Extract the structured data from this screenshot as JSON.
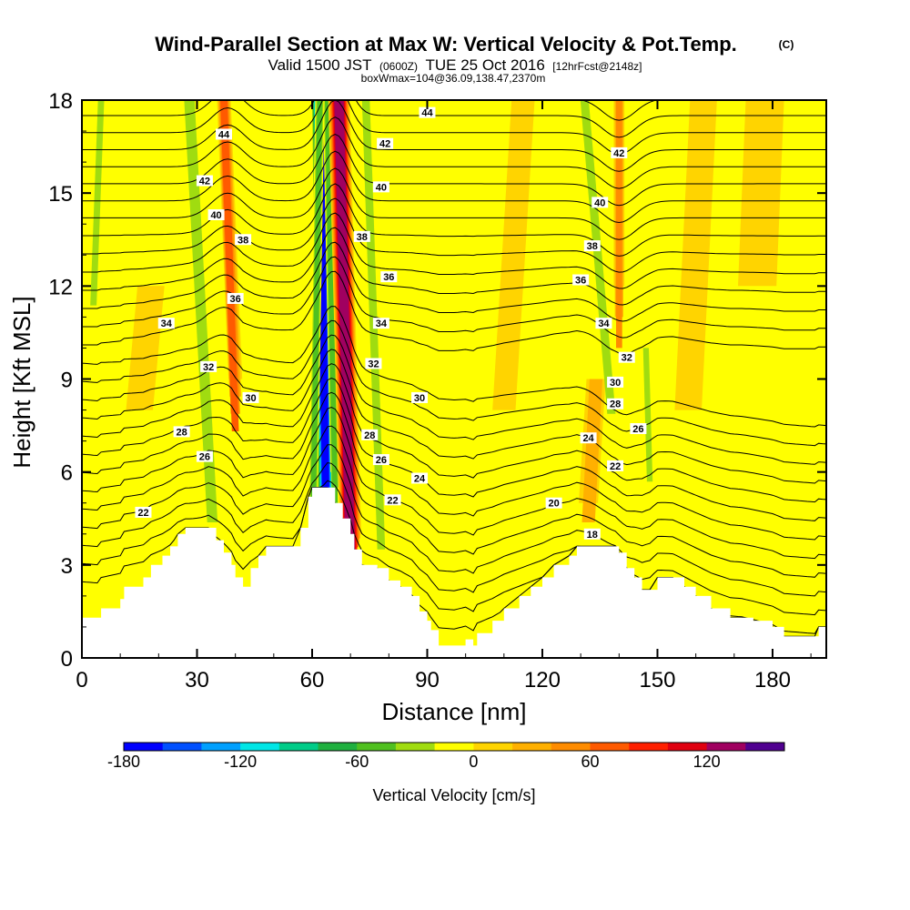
{
  "chart_data": {
    "type": "heatmap",
    "title": "Wind-Parallel Section at Max W: Vertical Velocity & Pot.Temp.",
    "title_mark": "(C)",
    "subtitle": {
      "valid": "Valid 1500 JST",
      "utc": "(0600Z)",
      "date": "TUE 25 Oct 2016",
      "forecast": "[12hrFcst@2148z]"
    },
    "subtitle2": "boxWmax=104@36.09,138.47,2370m",
    "xlabel": "Distance [nm]",
    "ylabel": "Height [Kft MSL]",
    "xlim": [
      0,
      194
    ],
    "ylim": [
      0,
      18
    ],
    "xticks": [
      0,
      30,
      60,
      90,
      120,
      150,
      180
    ],
    "yticks": [
      0,
      3,
      6,
      9,
      12,
      15,
      18
    ],
    "grid": false,
    "colorbar": {
      "label": "Vertical Velocity [cm/s]",
      "min": -180,
      "max": 160,
      "step": 20,
      "tick_values": [
        -180,
        -120,
        -60,
        0,
        60,
        120
      ],
      "colors": [
        "#0000ff",
        "#0050ff",
        "#00a0ff",
        "#00e6e6",
        "#00cc88",
        "#20b040",
        "#50c020",
        "#a0dc10",
        "#ffff00",
        "#ffd400",
        "#ffb000",
        "#ff8c00",
        "#ff5a00",
        "#ff2000",
        "#e00010",
        "#a00060",
        "#500090"
      ]
    },
    "terrain_height_kft": [
      [
        0,
        1.3
      ],
      [
        4,
        1.3
      ],
      [
        5,
        1.6
      ],
      [
        10,
        1.9
      ],
      [
        11,
        2.3
      ],
      [
        16,
        2.6
      ],
      [
        18,
        3.0
      ],
      [
        21,
        3.3
      ],
      [
        23,
        3.6
      ],
      [
        25,
        4.0
      ],
      [
        27,
        4.2
      ],
      [
        33,
        4.2
      ],
      [
        35,
        3.8
      ],
      [
        37,
        3.4
      ],
      [
        39,
        3.0
      ],
      [
        40,
        2.6
      ],
      [
        42,
        2.3
      ],
      [
        44,
        2.9
      ],
      [
        46,
        3.3
      ],
      [
        48,
        3.6
      ],
      [
        55,
        3.6
      ],
      [
        57,
        4.2
      ],
      [
        59,
        5.2
      ],
      [
        60,
        5.5
      ],
      [
        64,
        5.5
      ],
      [
        66,
        5.0
      ],
      [
        68,
        4.5
      ],
      [
        70,
        4.0
      ],
      [
        71,
        3.5
      ],
      [
        73,
        3.0
      ],
      [
        77,
        2.9
      ],
      [
        80,
        2.5
      ],
      [
        83,
        2.3
      ],
      [
        86,
        2.0
      ],
      [
        88,
        1.5
      ],
      [
        90,
        1.2
      ],
      [
        91,
        0.9
      ],
      [
        93,
        0.4
      ],
      [
        97,
        0.4
      ],
      [
        100,
        0.6
      ],
      [
        102,
        0.4
      ],
      [
        103,
        0.8
      ],
      [
        107,
        1.2
      ],
      [
        110,
        1.6
      ],
      [
        114,
        2.0
      ],
      [
        117,
        2.3
      ],
      [
        120,
        2.6
      ],
      [
        123,
        3.0
      ],
      [
        127,
        3.3
      ],
      [
        129,
        3.6
      ],
      [
        139,
        3.6
      ],
      [
        140,
        3.4
      ],
      [
        142,
        2.9
      ],
      [
        144,
        2.6
      ],
      [
        146,
        2.2
      ],
      [
        148,
        2.2
      ],
      [
        150,
        2.6
      ],
      [
        154,
        2.6
      ],
      [
        157,
        2.3
      ],
      [
        160,
        2.0
      ],
      [
        164,
        1.6
      ],
      [
        169,
        1.3
      ],
      [
        172,
        1.3
      ],
      [
        175,
        1.2
      ],
      [
        180,
        1.0
      ],
      [
        183,
        0.7
      ],
      [
        191,
        0.7
      ],
      [
        192,
        1.0
      ],
      [
        194,
        1.0
      ]
    ],
    "w_features": [
      {
        "x": 64,
        "y": 2.0,
        "x_top": 62,
        "half_width": 2.2,
        "value": -180,
        "top_kft": 18
      },
      {
        "x": 66,
        "y": 6.0,
        "x_top": 64,
        "half_width": 1.2,
        "value": -60,
        "top_kft": 18
      },
      {
        "x": 70,
        "y": 4.0,
        "x_top": 67,
        "half_width": 2.8,
        "value": 140,
        "top_kft": 18
      },
      {
        "x": 78,
        "y": 4.0,
        "x_top": 74,
        "half_width": 1.5,
        "value": -40,
        "top_kft": 18
      },
      {
        "x": 34,
        "y": 5.0,
        "x_top": 28,
        "half_width": 2.0,
        "value": -40,
        "top_kft": 18
      },
      {
        "x": 40,
        "y": 9.0,
        "x_top": 37,
        "half_width": 1.8,
        "value": 80,
        "top_kft": 18
      },
      {
        "x": 3,
        "y": 13.0,
        "x_top": 5,
        "half_width": 1.2,
        "value": -40,
        "top_kft": 18
      },
      {
        "x": 132,
        "y": 5.0,
        "x_top": 134,
        "half_width": 2.5,
        "value": 40,
        "top_kft": 9
      },
      {
        "x": 138,
        "y": 9.0,
        "x_top": 131,
        "half_width": 1.6,
        "value": -40,
        "top_kft": 18
      },
      {
        "x": 140,
        "y": 12.0,
        "x_top": 140,
        "half_width": 1.4,
        "value": 60,
        "top_kft": 18
      },
      {
        "x": 148,
        "y": 6.5,
        "x_top": 147,
        "half_width": 1.1,
        "value": -40,
        "top_kft": 10
      },
      {
        "x": 158,
        "y": 8.0,
        "x_top": 162,
        "half_width": 3.5,
        "value": 20,
        "top_kft": 18
      },
      {
        "x": 176,
        "y": 12.0,
        "x_top": 178,
        "half_width": 5.0,
        "value": 20,
        "top_kft": 18
      },
      {
        "x": 110,
        "y": 8.0,
        "x_top": 115,
        "half_width": 3.0,
        "value": 20,
        "top_kft": 18
      },
      {
        "x": 15,
        "y": 8.0,
        "x_top": 18,
        "half_width": 3.5,
        "value": 20,
        "top_kft": 12
      },
      {
        "x": 60,
        "y": 3.0,
        "x_top": 62,
        "half_width": 1.2,
        "value": -60,
        "top_kft": 18
      }
    ],
    "theta_contours": {
      "levels": [
        18,
        19,
        20,
        21,
        22,
        23,
        24,
        25,
        26,
        27,
        28,
        29,
        30,
        31,
        32,
        33,
        34,
        35,
        36,
        37,
        38,
        39,
        40,
        41,
        42,
        43,
        44,
        45
      ],
      "labels": [
        {
          "value": "44",
          "x": 37,
          "y": 16.9
        },
        {
          "value": "42",
          "x": 32,
          "y": 15.4
        },
        {
          "value": "40",
          "x": 35,
          "y": 14.3
        },
        {
          "value": "38",
          "x": 42,
          "y": 13.5
        },
        {
          "value": "36",
          "x": 40,
          "y": 11.6
        },
        {
          "value": "34",
          "x": 22,
          "y": 10.8
        },
        {
          "value": "32",
          "x": 33,
          "y": 9.4
        },
        {
          "value": "30",
          "x": 44,
          "y": 8.4
        },
        {
          "value": "28",
          "x": 26,
          "y": 7.3
        },
        {
          "value": "26",
          "x": 32,
          "y": 6.5
        },
        {
          "value": "22",
          "x": 16,
          "y": 4.7
        },
        {
          "value": "44",
          "x": 90,
          "y": 17.6
        },
        {
          "value": "42",
          "x": 79,
          "y": 16.6
        },
        {
          "value": "40",
          "x": 78,
          "y": 15.2
        },
        {
          "value": "38",
          "x": 73,
          "y": 13.6
        },
        {
          "value": "36",
          "x": 80,
          "y": 12.3
        },
        {
          "value": "34",
          "x": 78,
          "y": 10.8
        },
        {
          "value": "32",
          "x": 76,
          "y": 9.5
        },
        {
          "value": "30",
          "x": 88,
          "y": 8.4
        },
        {
          "value": "28",
          "x": 75,
          "y": 7.2
        },
        {
          "value": "26",
          "x": 78,
          "y": 6.4
        },
        {
          "value": "24",
          "x": 88,
          "y": 5.8
        },
        {
          "value": "22",
          "x": 81,
          "y": 5.1
        },
        {
          "value": "42",
          "x": 140,
          "y": 16.3
        },
        {
          "value": "40",
          "x": 135,
          "y": 14.7
        },
        {
          "value": "38",
          "x": 133,
          "y": 13.3
        },
        {
          "value": "36",
          "x": 130,
          "y": 12.2
        },
        {
          "value": "34",
          "x": 136,
          "y": 10.8
        },
        {
          "value": "32",
          "x": 142,
          "y": 9.7
        },
        {
          "value": "30",
          "x": 139,
          "y": 8.9
        },
        {
          "value": "28",
          "x": 139,
          "y": 8.2
        },
        {
          "value": "26",
          "x": 145,
          "y": 7.4
        },
        {
          "value": "24",
          "x": 132,
          "y": 7.1
        },
        {
          "value": "22",
          "x": 139,
          "y": 6.2
        },
        {
          "value": "20",
          "x": 123,
          "y": 5.0
        },
        {
          "value": "18",
          "x": 133,
          "y": 4.0
        }
      ]
    }
  }
}
